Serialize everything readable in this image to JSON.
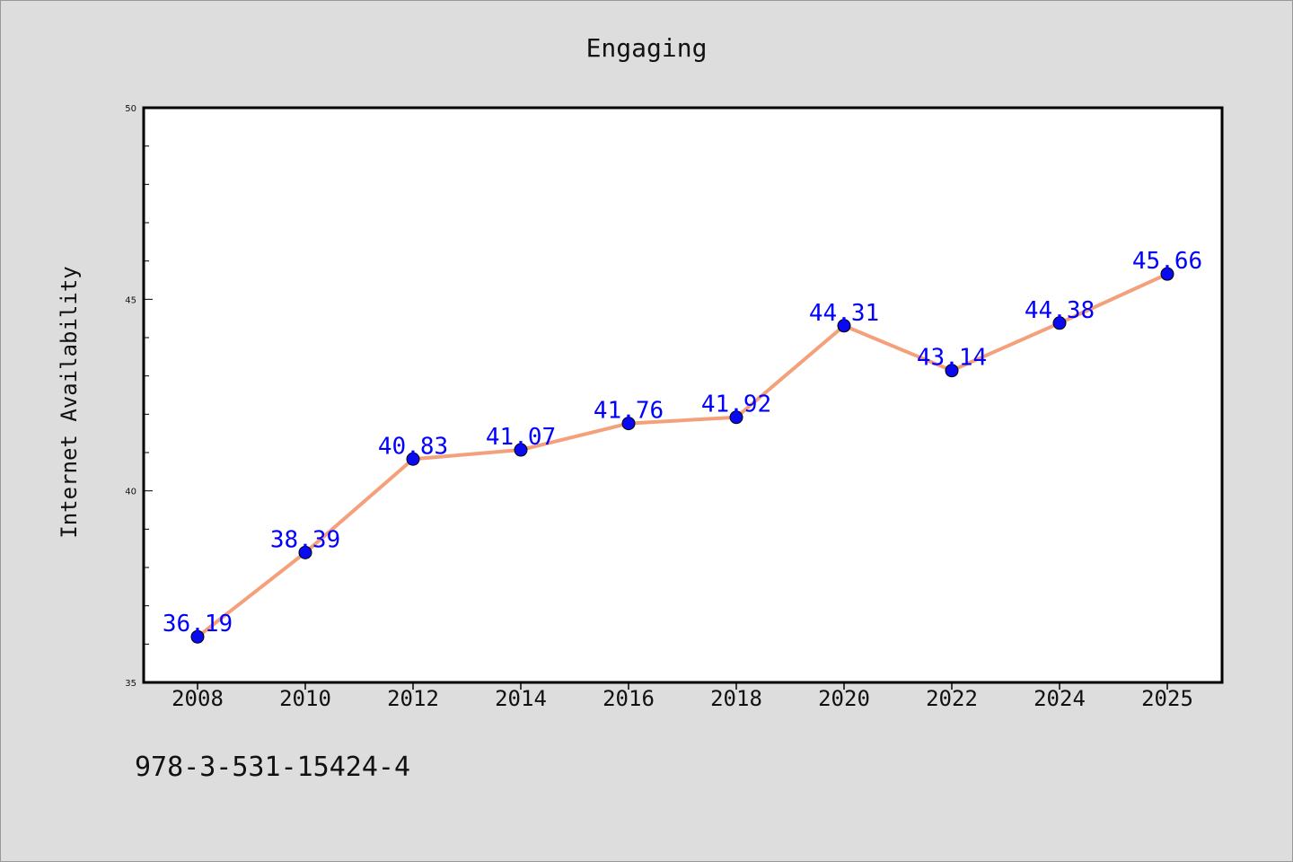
{
  "chart_data": {
    "type": "line",
    "title": "Engaging",
    "xlabel": "",
    "ylabel": "Internet Availability",
    "categories": [
      "2008",
      "2010",
      "2012",
      "2014",
      "2016",
      "2018",
      "2020",
      "2022",
      "2024",
      "2025"
    ],
    "series": [
      {
        "values": [
          36.19,
          38.39,
          40.83,
          41.07,
          41.76,
          41.92,
          44.31,
          43.14,
          44.38,
          45.66
        ],
        "value_labels": [
          "36.19",
          "38.39",
          "40.83",
          "41.07",
          "41.76",
          "41.92",
          "44.31",
          "43.14",
          "44.38",
          "45.66"
        ],
        "line_color": "#f4a07a",
        "marker_color": "#0a0af0",
        "label_color": "#0000ff"
      }
    ],
    "ylim": [
      35,
      50
    ],
    "yticks_major": [
      "35",
      "40",
      "45",
      "50"
    ],
    "grid": false,
    "legend": "none"
  },
  "footer": {
    "isbn": "978-3-531-15424-4"
  },
  "colors": {
    "background": "#dddddd",
    "plot_background": "#ffffff",
    "axes": "#000000"
  }
}
